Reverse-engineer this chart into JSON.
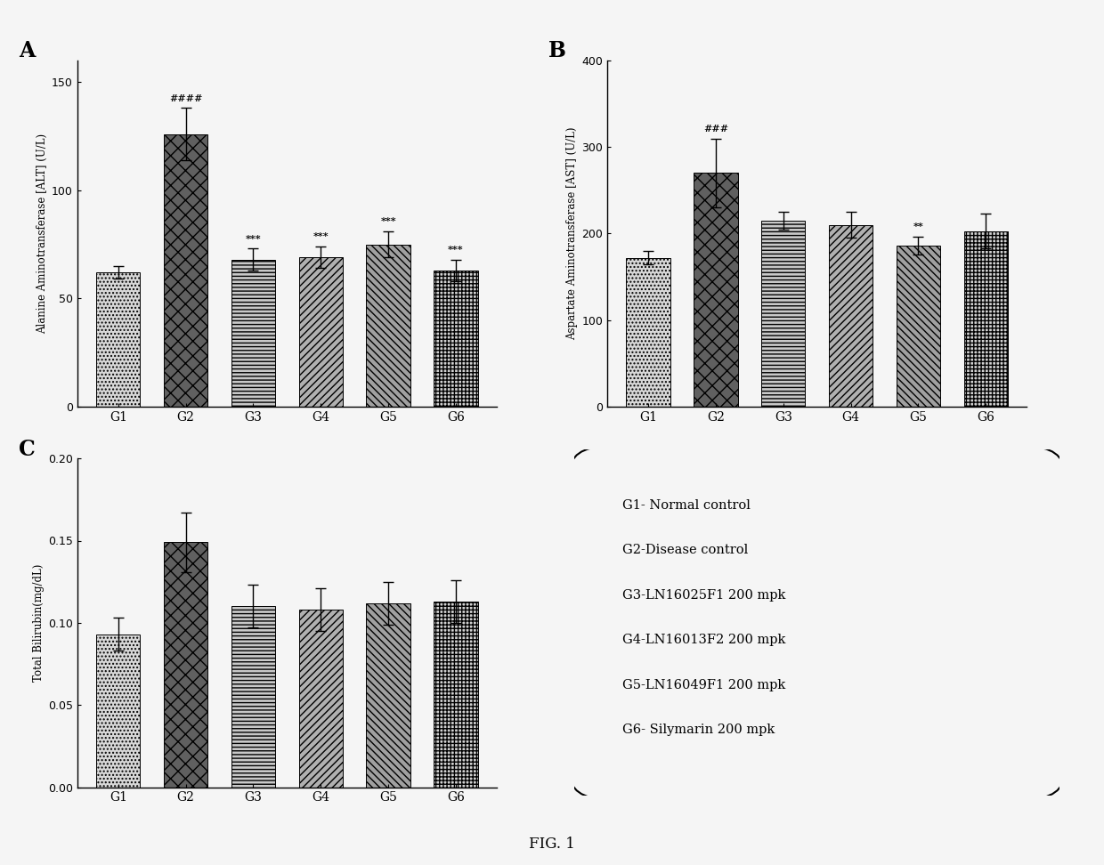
{
  "panel_A": {
    "title": "A",
    "ylabel": "Alanine Aminotransferase [ALT] (U/L)",
    "categories": [
      "G1",
      "G2",
      "G3",
      "G4",
      "G5",
      "G6"
    ],
    "values": [
      62,
      126,
      68,
      69,
      75,
      63
    ],
    "errors": [
      3,
      12,
      5,
      5,
      6,
      5
    ],
    "ylim": [
      0,
      160
    ],
    "yticks": [
      0,
      50,
      100,
      150
    ],
    "annotations": [
      "",
      "####",
      "***",
      "***",
      "***",
      "***"
    ],
    "ann_offsets": [
      0,
      14,
      6,
      6,
      7,
      6
    ]
  },
  "panel_B": {
    "title": "B",
    "ylabel": "Aspartate Aminotransferase [AST] (U/L)",
    "categories": [
      "G1",
      "G2",
      "G3",
      "G4",
      "G5",
      "G6"
    ],
    "values": [
      172,
      270,
      215,
      210,
      186,
      203
    ],
    "errors": [
      8,
      40,
      10,
      15,
      10,
      20
    ],
    "ylim": [
      0,
      400
    ],
    "yticks": [
      0,
      100,
      200,
      300,
      400
    ],
    "annotations": [
      "",
      "###",
      "",
      "",
      "**",
      ""
    ],
    "ann_offsets": [
      0,
      42,
      0,
      0,
      12,
      0
    ]
  },
  "panel_C": {
    "title": "C",
    "ylabel": "Total Bilirubin(mg/dL)",
    "categories": [
      "G1",
      "G2",
      "G3",
      "G4",
      "G5",
      "G6"
    ],
    "values": [
      0.093,
      0.149,
      0.11,
      0.108,
      0.112,
      0.113
    ],
    "errors": [
      0.01,
      0.018,
      0.013,
      0.013,
      0.013,
      0.013
    ],
    "ylim": [
      0.0,
      0.2
    ],
    "yticks": [
      0.0,
      0.05,
      0.1,
      0.15,
      0.2
    ],
    "annotations": [
      "",
      "",
      "",
      "",
      "",
      ""
    ],
    "ann_offsets": [
      0,
      0,
      0,
      0,
      0,
      0
    ]
  },
  "legend_text": [
    "G1- Normal control",
    "G2-Disease control",
    "G3-LN16025F1 200 mpk",
    "G4-LN16013F2 200 mpk",
    "G5-LN16049F1 200 mpk",
    "G6- Silymarin 200 mpk"
  ],
  "fig_label": "FIG. 1",
  "bar_facecolors": [
    "#d8d8d8",
    "#606060",
    "#c8c8c8",
    "#b0b0b0",
    "#a0a0a0",
    "#d0d0d0"
  ],
  "hatch_patterns": [
    "....",
    "xx",
    "----",
    "////",
    "\\\\\\\\",
    "++++"
  ]
}
